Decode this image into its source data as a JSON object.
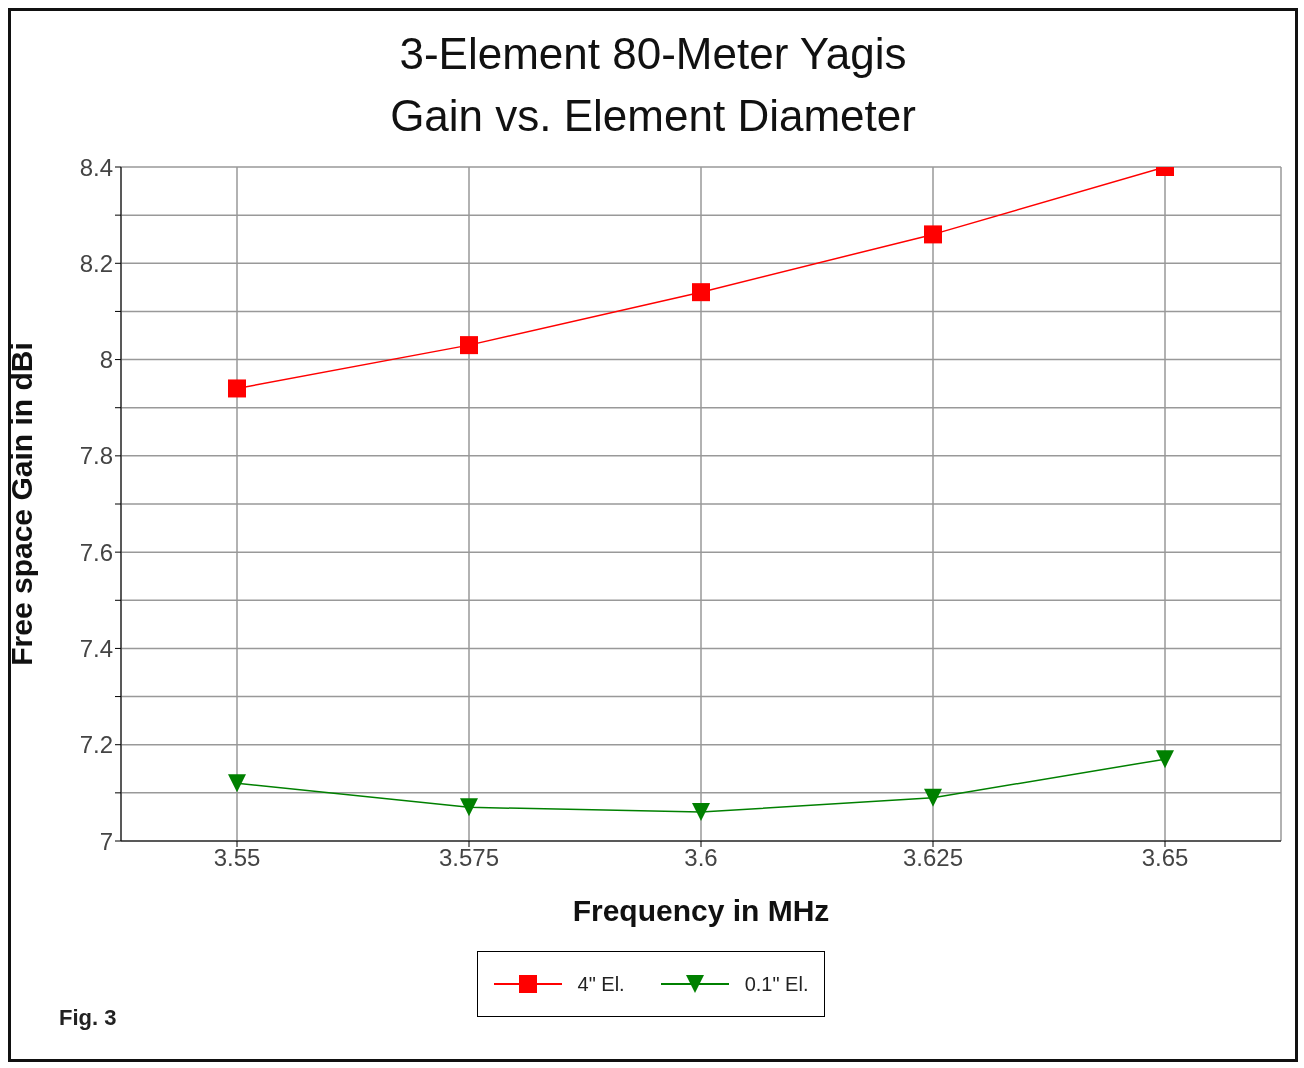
{
  "chart_data": {
    "type": "line",
    "title": "3-Element 80-Meter Yagis",
    "subtitle": "Gain vs. Element Diameter",
    "xlabel": "Frequency in MHz",
    "ylabel": "Free space Gain in dBi",
    "categories": [
      "3.55",
      "3.575",
      "3.6",
      "3.625",
      "3.65"
    ],
    "series": [
      {
        "name": "4\" El.",
        "color": "#ff0000",
        "marker": "square",
        "values": [
          7.94,
          8.03,
          8.14,
          8.26,
          8.4
        ]
      },
      {
        "name": "0.1\" El.",
        "color": "#008000",
        "marker": "triangle",
        "values": [
          7.12,
          7.07,
          7.06,
          7.09,
          7.17
        ]
      }
    ],
    "ylim": [
      7,
      8.4
    ],
    "yticks": [
      7,
      {
        "value": 7.1,
        "label": null
      },
      7.2,
      {
        "value": 7.3,
        "label": null
      },
      7.4,
      {
        "value": 7.5,
        "label": null
      },
      7.6,
      {
        "value": 7.7,
        "label": null
      },
      7.8,
      {
        "value": 7.9,
        "label": null
      },
      8,
      {
        "value": 8.1,
        "label": null
      },
      8.2,
      {
        "value": 8.3,
        "label": null
      },
      8.4
    ],
    "grid": true,
    "legend": "bottom",
    "line_style": "solid",
    "annotations": [
      "Fig. 3"
    ]
  }
}
